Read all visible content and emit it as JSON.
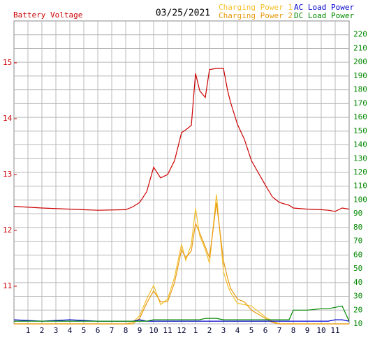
{
  "chart_data": {
    "type": "line",
    "title": "03/25/2021",
    "y_label": "Battery Voltage",
    "x": [
      0,
      2,
      4,
      6,
      8,
      8.5,
      9,
      9.5,
      10,
      10.5,
      11,
      11.5,
      12,
      12.3,
      12.7,
      13,
      13.3,
      13.7,
      14,
      14.5,
      15,
      15.3,
      15.5,
      16,
      16.5,
      17,
      18,
      18.5,
      19,
      19.7,
      20,
      21,
      22,
      22.5,
      23,
      23.5,
      24
    ],
    "series": [
      {
        "name": "Battery Voltage",
        "color": "#cc0000",
        "axis": "y",
        "values": [
          12.43,
          12.4,
          12.38,
          12.36,
          12.37,
          12.42,
          12.5,
          12.69,
          13.13,
          12.94,
          13.0,
          13.25,
          13.75,
          13.8,
          13.88,
          14.81,
          14.5,
          14.38,
          14.88,
          14.9,
          14.9,
          14.5,
          14.3,
          13.9,
          13.63,
          13.25,
          12.81,
          12.6,
          12.5,
          12.45,
          12.4,
          12.38,
          12.37,
          12.36,
          12.34,
          12.4,
          12.38
        ]
      },
      {
        "name": "Charging Power 1",
        "color": "#f5c030",
        "axis": "y2",
        "values": [
          10,
          10,
          10,
          10,
          10,
          11,
          16,
          28,
          38,
          24,
          28,
          44,
          68,
          56,
          68,
          94,
          74,
          64,
          54,
          104,
          48,
          38,
          33,
          25,
          24,
          23,
          15,
          12,
          10,
          10,
          10,
          10,
          10,
          10,
          10,
          10,
          10
        ]
      },
      {
        "name": "Charging Power 2",
        "color": "#e89a10",
        "axis": "y2",
        "values": [
          10,
          10,
          10,
          10,
          10,
          10,
          14,
          25,
          34,
          26,
          26,
          40,
          64,
          58,
          63,
          83,
          76,
          66,
          58,
          98,
          56,
          43,
          36,
          28,
          26,
          20,
          14,
          11,
          10,
          10,
          10,
          10,
          10,
          10,
          10,
          10,
          10
        ]
      },
      {
        "name": "AC Load Power",
        "color": "#0000cc",
        "axis": "y2",
        "values": [
          13,
          12,
          13,
          12,
          12,
          12,
          13,
          12,
          12,
          12,
          12,
          12,
          12,
          12,
          12,
          12,
          12,
          12,
          12,
          12,
          12,
          12,
          12,
          12,
          12,
          12,
          12,
          12,
          12,
          12,
          12,
          12,
          12,
          12,
          13,
          13,
          12
        ]
      },
      {
        "name": "DC Load Power",
        "color": "#008800",
        "axis": "y2",
        "values": [
          12,
          12,
          12,
          12,
          12,
          12,
          12,
          12,
          13,
          13,
          13,
          13,
          13,
          13,
          13,
          13,
          13,
          14,
          14,
          14,
          13,
          13,
          13,
          13,
          13,
          13,
          13,
          13,
          13,
          13,
          20,
          20,
          21,
          21,
          22,
          23,
          12
        ]
      }
    ],
    "xlim": [
      0,
      24
    ],
    "xticks": [
      1,
      2,
      3,
      4,
      5,
      6,
      7,
      8,
      9,
      10,
      11,
      12,
      {
        "value": 13,
        "label": "1"
      },
      {
        "value": 14,
        "label": "2"
      },
      {
        "value": 15,
        "label": "3"
      },
      {
        "value": 16,
        "label": "4"
      },
      {
        "value": 17,
        "label": "5"
      },
      {
        "value": 18,
        "label": "6"
      },
      {
        "value": 19,
        "label": "7"
      },
      {
        "value": 20,
        "label": "8"
      },
      {
        "value": 21,
        "label": "9"
      },
      {
        "value": 22,
        "label": "10"
      },
      {
        "value": 23,
        "label": "11"
      }
    ],
    "ylim": [
      10.325,
      15.75
    ],
    "yticks": [
      11,
      12,
      13,
      14,
      15
    ],
    "y2lim": [
      10,
      230
    ],
    "y2ticks": [
      10,
      20,
      30,
      40,
      50,
      60,
      70,
      80,
      90,
      100,
      110,
      120,
      130,
      140,
      150,
      160,
      170,
      180,
      190,
      200,
      210,
      220
    ],
    "grid": true
  }
}
